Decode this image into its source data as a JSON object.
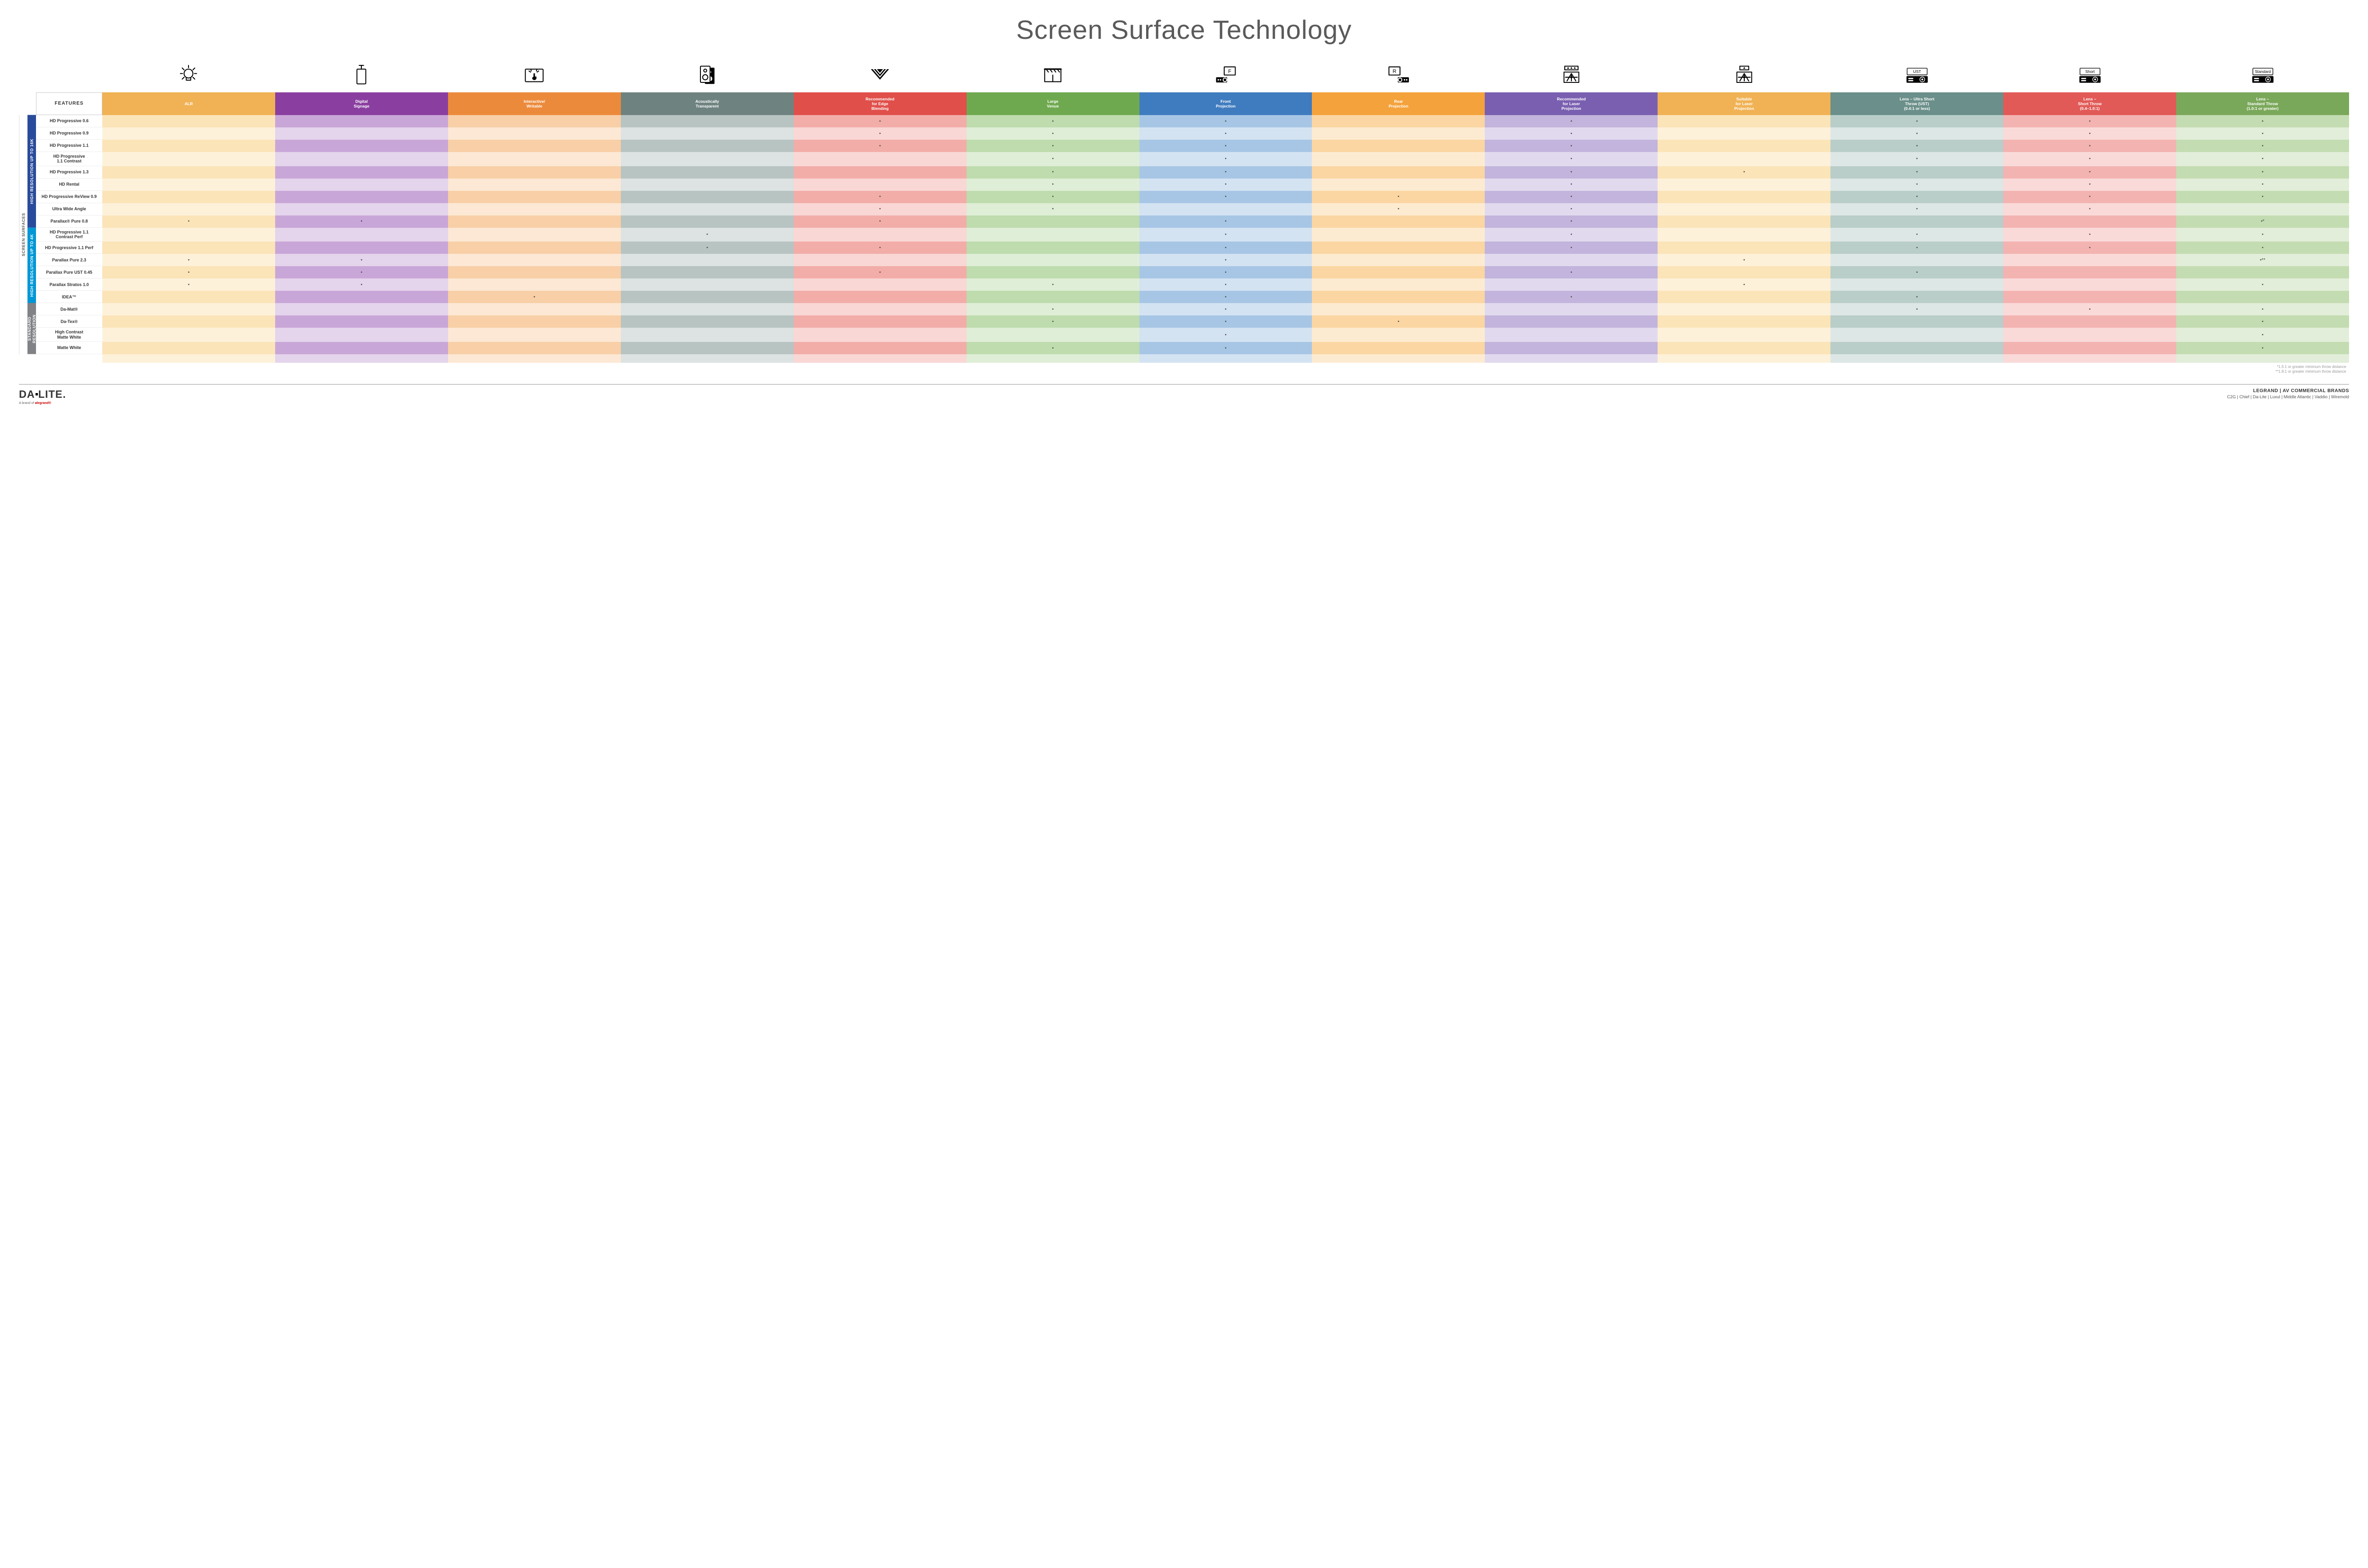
{
  "title": "Screen Surface Technology",
  "colors": {
    "dot": "#4a4a4a",
    "columns": {
      "alr": {
        "solid": "#f0b254",
        "light": "#fbe4b8",
        "lighter": "#fdf1da"
      },
      "signage": {
        "solid": "#8a3fa0",
        "light": "#c9a6d8",
        "lighter": "#e4d4ec"
      },
      "writable": {
        "solid": "#ec8a3b",
        "light": "#f8cfa7",
        "lighter": "#fce8d4"
      },
      "acoustic": {
        "solid": "#6e8380",
        "light": "#b8c4c2",
        "lighter": "#dce3e2"
      },
      "edge": {
        "solid": "#e04f4a",
        "light": "#f2ada9",
        "lighter": "#f9d7d5"
      },
      "venue": {
        "solid": "#6fa94f",
        "light": "#bedcad",
        "lighter": "#dfeed7"
      },
      "front": {
        "solid": "#3f7bbf",
        "light": "#a7c6e5",
        "lighter": "#d4e3f2"
      },
      "rear": {
        "solid": "#f4a23c",
        "light": "#fbd6a2",
        "lighter": "#fdebd1"
      },
      "reclaser": {
        "solid": "#7a5fb0",
        "light": "#c2b4dc",
        "lighter": "#e1daee"
      },
      "suitlaser": {
        "solid": "#f0b254",
        "light": "#fbe4b8",
        "lighter": "#fdf1da"
      },
      "ust": {
        "solid": "#6b8f8a",
        "light": "#b9cdc9",
        "lighter": "#dde7e5"
      },
      "short": {
        "solid": "#e15a57",
        "light": "#f3b3b1",
        "lighter": "#f9dad9"
      },
      "standard": {
        "solid": "#7aa85a",
        "light": "#c4dcb1",
        "lighter": "#e2eed9"
      }
    },
    "groups": {
      "outer": "#ffffff",
      "g16k": "#2a4b9b",
      "g4k": "#0097d6",
      "gstd": "#808285"
    }
  },
  "columns": [
    {
      "key": "alr",
      "label": "ALR",
      "icon": "bulb"
    },
    {
      "key": "signage",
      "label": "Digital\nSignage",
      "icon": "signage"
    },
    {
      "key": "writable",
      "label": "Interactive/\nWritable",
      "icon": "touch"
    },
    {
      "key": "acoustic",
      "label": "Acoustically\nTransparent",
      "icon": "speaker"
    },
    {
      "key": "edge",
      "label": "Recommended\nfor Edge\nBlending",
      "icon": "edge"
    },
    {
      "key": "venue",
      "label": "Large\nVenue",
      "icon": "venue"
    },
    {
      "key": "front",
      "label": "Front\nProjection",
      "icon": "front"
    },
    {
      "key": "rear",
      "label": "Rear\nProjection",
      "icon": "rear"
    },
    {
      "key": "reclaser",
      "label": "Recommended\nfor Laser\nProjection",
      "icon": "laser-rec"
    },
    {
      "key": "suitlaser",
      "label": "Suitable\nfor Laser\nProjection",
      "icon": "laser-suit"
    },
    {
      "key": "ust",
      "label": "Lens – Ultra Short\nThrow (UST)\n(0.4:1 or less)",
      "icon": "proj-ust",
      "projLabel": "UST"
    },
    {
      "key": "short",
      "label": "Lens –\nShort Throw\n(0.4–1.0:1)",
      "icon": "proj-short",
      "projLabel": "Short"
    },
    {
      "key": "standard",
      "label": "Lens –\nStandard Throw\n(1.0:1 or greater)",
      "icon": "proj-std",
      "projLabel": "Standard"
    }
  ],
  "outerGroupLabel": "SCREEN SURFACES",
  "groups": [
    {
      "key": "g16k",
      "label": "HIGH RESOLUTION UP TO 16K",
      "rows": [
        {
          "name": "HD Progressive 0.6",
          "dots": {
            "edge": "•",
            "venue": "•",
            "front": "•",
            "reclaser": "•",
            "ust": "•",
            "short": "•",
            "standard": "•"
          }
        },
        {
          "name": "HD Progressive 0.9",
          "dots": {
            "edge": "•",
            "venue": "•",
            "front": "•",
            "reclaser": "•",
            "ust": "•",
            "short": "•",
            "standard": "•"
          }
        },
        {
          "name": "HD Progressive 1.1",
          "dots": {
            "edge": "•",
            "venue": "•",
            "front": "•",
            "reclaser": "•",
            "ust": "•",
            "short": "•",
            "standard": "•"
          }
        },
        {
          "name": "HD Progressive\n1.1 Contrast",
          "dots": {
            "venue": "•",
            "front": "•",
            "reclaser": "•",
            "ust": "•",
            "short": "•",
            "standard": "•"
          }
        },
        {
          "name": "HD Progressive 1.3",
          "dots": {
            "venue": "•",
            "front": "•",
            "reclaser": "•",
            "suitlaser": "•",
            "ust": "•",
            "short": "•",
            "standard": "•"
          }
        },
        {
          "name": "HD Rental",
          "dots": {
            "venue": "•",
            "front": "•",
            "reclaser": "•",
            "ust": "•",
            "short": "•",
            "standard": "•"
          }
        },
        {
          "name": "HD Progressive ReView 0.9",
          "dots": {
            "edge": "•",
            "venue": "•",
            "front": "•",
            "rear": "•",
            "reclaser": "•",
            "ust": "•",
            "short": "•",
            "standard": "•"
          }
        },
        {
          "name": "Ultra Wide Angle",
          "dots": {
            "edge": "•",
            "venue": "•",
            "rear": "•",
            "reclaser": "•",
            "ust": "•",
            "short": "•"
          }
        },
        {
          "name": "Parallax® Pure 0.8",
          "dots": {
            "alr": "•",
            "signage": "•",
            "edge": "•",
            "front": "•",
            "reclaser": "•",
            "standard": "•*"
          }
        }
      ]
    },
    {
      "key": "g4k",
      "label": "HIGH RESOLUTION UP TO 4K",
      "rows": [
        {
          "name": "HD Progressive 1.1\nContrast Perf",
          "dots": {
            "acoustic": "•",
            "front": "•",
            "reclaser": "•",
            "ust": "•",
            "short": "•",
            "standard": "•"
          }
        },
        {
          "name": "HD Progressive 1.1 Perf",
          "dots": {
            "acoustic": "•",
            "edge": "•",
            "front": "•",
            "reclaser": "•",
            "ust": "•",
            "short": "•",
            "standard": "•"
          }
        },
        {
          "name": "Parallax Pure 2.3",
          "dots": {
            "alr": "•",
            "signage": "•",
            "front": "•",
            "suitlaser": "•",
            "standard": "•**"
          }
        },
        {
          "name": "Parallax Pure UST 0.45",
          "dots": {
            "alr": "•",
            "signage": "•",
            "edge": "•",
            "front": "•",
            "reclaser": "•",
            "ust": "•"
          }
        },
        {
          "name": "Parallax Stratos 1.0",
          "dots": {
            "alr": "•",
            "signage": "•",
            "venue": "•",
            "front": "•",
            "suitlaser": "•",
            "standard": "•"
          }
        },
        {
          "name": "IDEA™",
          "dots": {
            "writable": "•",
            "front": "•",
            "reclaser": "•",
            "ust": "•"
          }
        }
      ]
    },
    {
      "key": "gstd",
      "label": "STANDARD\nRESOLUTION",
      "rows": [
        {
          "name": "Da-Mat®",
          "dots": {
            "venue": "•",
            "front": "•",
            "ust": "•",
            "short": "•",
            "standard": "•"
          }
        },
        {
          "name": "Da-Tex®",
          "dots": {
            "venue": "•",
            "front": "•",
            "rear": "•",
            "standard": "•"
          }
        },
        {
          "name": "High Contrast\nMatte White",
          "dots": {
            "front": "•",
            "standard": "•"
          }
        },
        {
          "name": "Matte White",
          "dots": {
            "venue": "•",
            "front": "•",
            "standard": "•"
          }
        }
      ]
    }
  ],
  "featuresHeader": "FEATURES",
  "footnotes": [
    "*1.5:1 or greater minimum throw distance",
    "**1.8:1 or greater minimum throw distance"
  ],
  "footer": {
    "logoMain": "DA·LITE.",
    "logoSub": "A brand of",
    "logoSubBrand": "legrand®",
    "brandsTitle": "LEGRAND | AV COMMERCIAL BRANDS",
    "brandsList": "C2G  |  Chief  |  Da-Lite  |  Luxul  |  Middle Atlantic  |  Vaddio  |  Wiremold"
  }
}
